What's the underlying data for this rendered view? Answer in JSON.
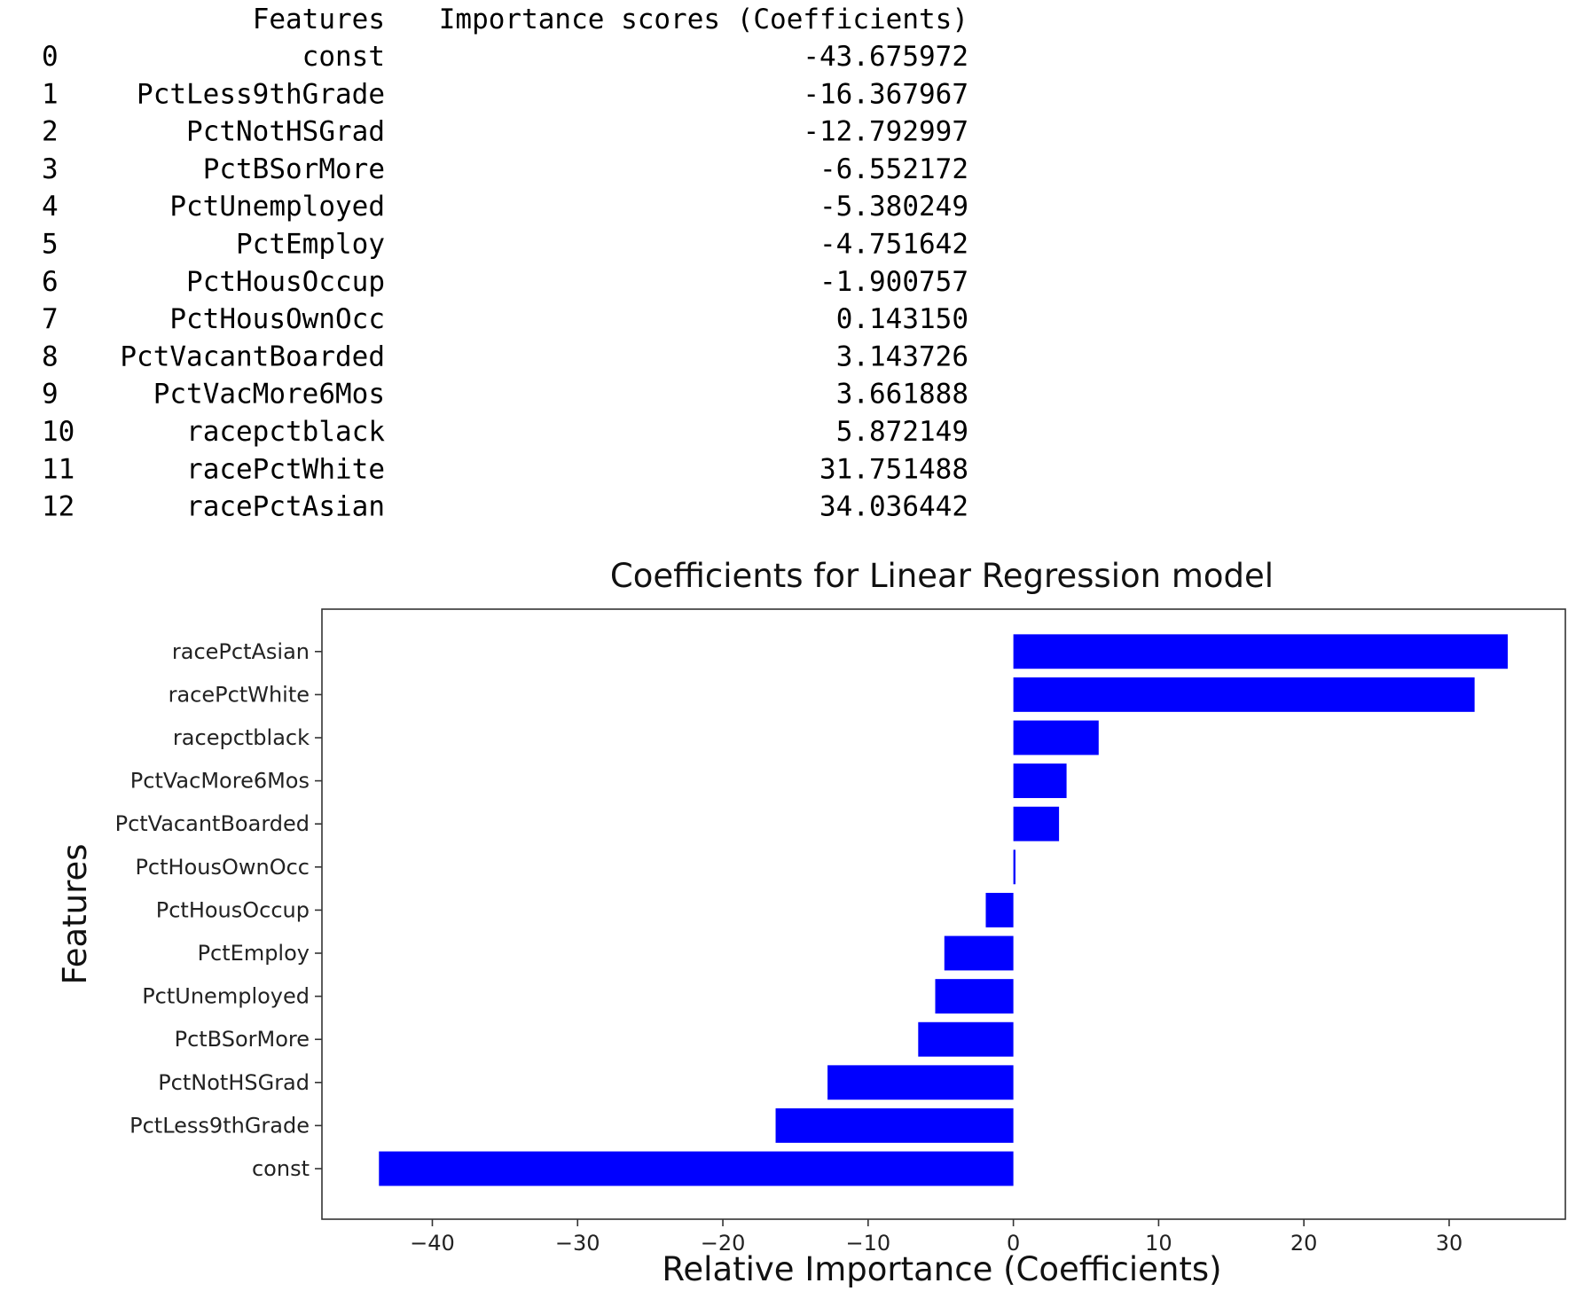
{
  "table": {
    "headers": [
      "Features",
      "Importance scores (Coefficients)"
    ],
    "rows": [
      {
        "index": "0",
        "feature": "const",
        "score": "-43.675972"
      },
      {
        "index": "1",
        "feature": "PctLess9thGrade",
        "score": "-16.367967"
      },
      {
        "index": "2",
        "feature": "PctNotHSGrad",
        "score": "-12.792997"
      },
      {
        "index": "3",
        "feature": "PctBSorMore",
        "score": "-6.552172"
      },
      {
        "index": "4",
        "feature": "PctUnemployed",
        "score": "-5.380249"
      },
      {
        "index": "5",
        "feature": "PctEmploy",
        "score": "-4.751642"
      },
      {
        "index": "6",
        "feature": "PctHousOccup",
        "score": "-1.900757"
      },
      {
        "index": "7",
        "feature": "PctHousOwnOcc",
        "score": "0.143150"
      },
      {
        "index": "8",
        "feature": "PctVacantBoarded",
        "score": "3.143726"
      },
      {
        "index": "9",
        "feature": "PctVacMore6Mos",
        "score": "3.661888"
      },
      {
        "index": "10",
        "feature": "racepctblack",
        "score": "5.872149"
      },
      {
        "index": "11",
        "feature": "racePctWhite",
        "score": "31.751488"
      },
      {
        "index": "12",
        "feature": "racePctAsian",
        "score": "34.036442"
      }
    ]
  },
  "chart_data": {
    "type": "bar",
    "orientation": "horizontal",
    "title": "Coefficients for Linear Regression model",
    "xlabel": "Relative Importance (Coefficients)",
    "ylabel": "Features",
    "categories": [
      "const",
      "PctLess9thGrade",
      "PctNotHSGrad",
      "PctBSorMore",
      "PctUnemployed",
      "PctEmploy",
      "PctHousOccup",
      "PctHousOwnOcc",
      "PctVacantBoarded",
      "PctVacMore6Mos",
      "racepctblack",
      "racePctWhite",
      "racePctAsian"
    ],
    "values": [
      -43.675972,
      -16.367967,
      -12.792997,
      -6.552172,
      -5.380249,
      -4.751642,
      -1.900757,
      0.14315,
      3.143726,
      3.661888,
      5.872149,
      31.751488,
      34.036442
    ],
    "xlim": [
      -47.6,
      38.0
    ],
    "xticks": [
      -40,
      -30,
      -20,
      -10,
      0,
      10,
      20,
      30
    ],
    "xtick_labels": [
      "−40",
      "−30",
      "−20",
      "−10",
      "0",
      "10",
      "20",
      "30"
    ],
    "bar_color": "#0000ff",
    "grid": false,
    "legend": "none"
  }
}
